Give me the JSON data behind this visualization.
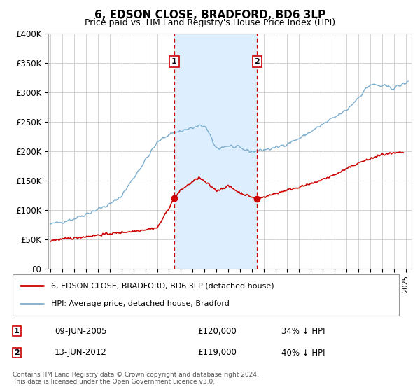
{
  "title": "6, EDSON CLOSE, BRADFORD, BD6 3LP",
  "subtitle": "Price paid vs. HM Land Registry's House Price Index (HPI)",
  "title_fontsize": 11,
  "subtitle_fontsize": 9,
  "ylabel_ticks": [
    "£0",
    "£50K",
    "£100K",
    "£150K",
    "£200K",
    "£250K",
    "£300K",
    "£350K",
    "£400K"
  ],
  "ylim": [
    0,
    400000
  ],
  "xlim_start": 1994.8,
  "xlim_end": 2025.5,
  "purchase1_date": 2005.44,
  "purchase1_price": 120000,
  "purchase1_label": "1",
  "purchase1_text": "09-JUN-2005",
  "purchase1_amount": "£120,000",
  "purchase1_hpi": "34% ↓ HPI",
  "purchase2_date": 2012.44,
  "purchase2_price": 119000,
  "purchase2_label": "2",
  "purchase2_text": "13-JUN-2012",
  "purchase2_amount": "£119,000",
  "purchase2_hpi": "40% ↓ HPI",
  "legend_line1": "6, EDSON CLOSE, BRADFORD, BD6 3LP (detached house)",
  "legend_line2": "HPI: Average price, detached house, Bradford",
  "footer": "Contains HM Land Registry data © Crown copyright and database right 2024.\nThis data is licensed under the Open Government Licence v3.0.",
  "line_color_red": "#cc0000",
  "line_color_blue": "#7aadce",
  "shade_color": "#ddeeff",
  "marker_box_color": "#cc0000",
  "grid_color": "#cccccc",
  "background_color": "#ffffff"
}
